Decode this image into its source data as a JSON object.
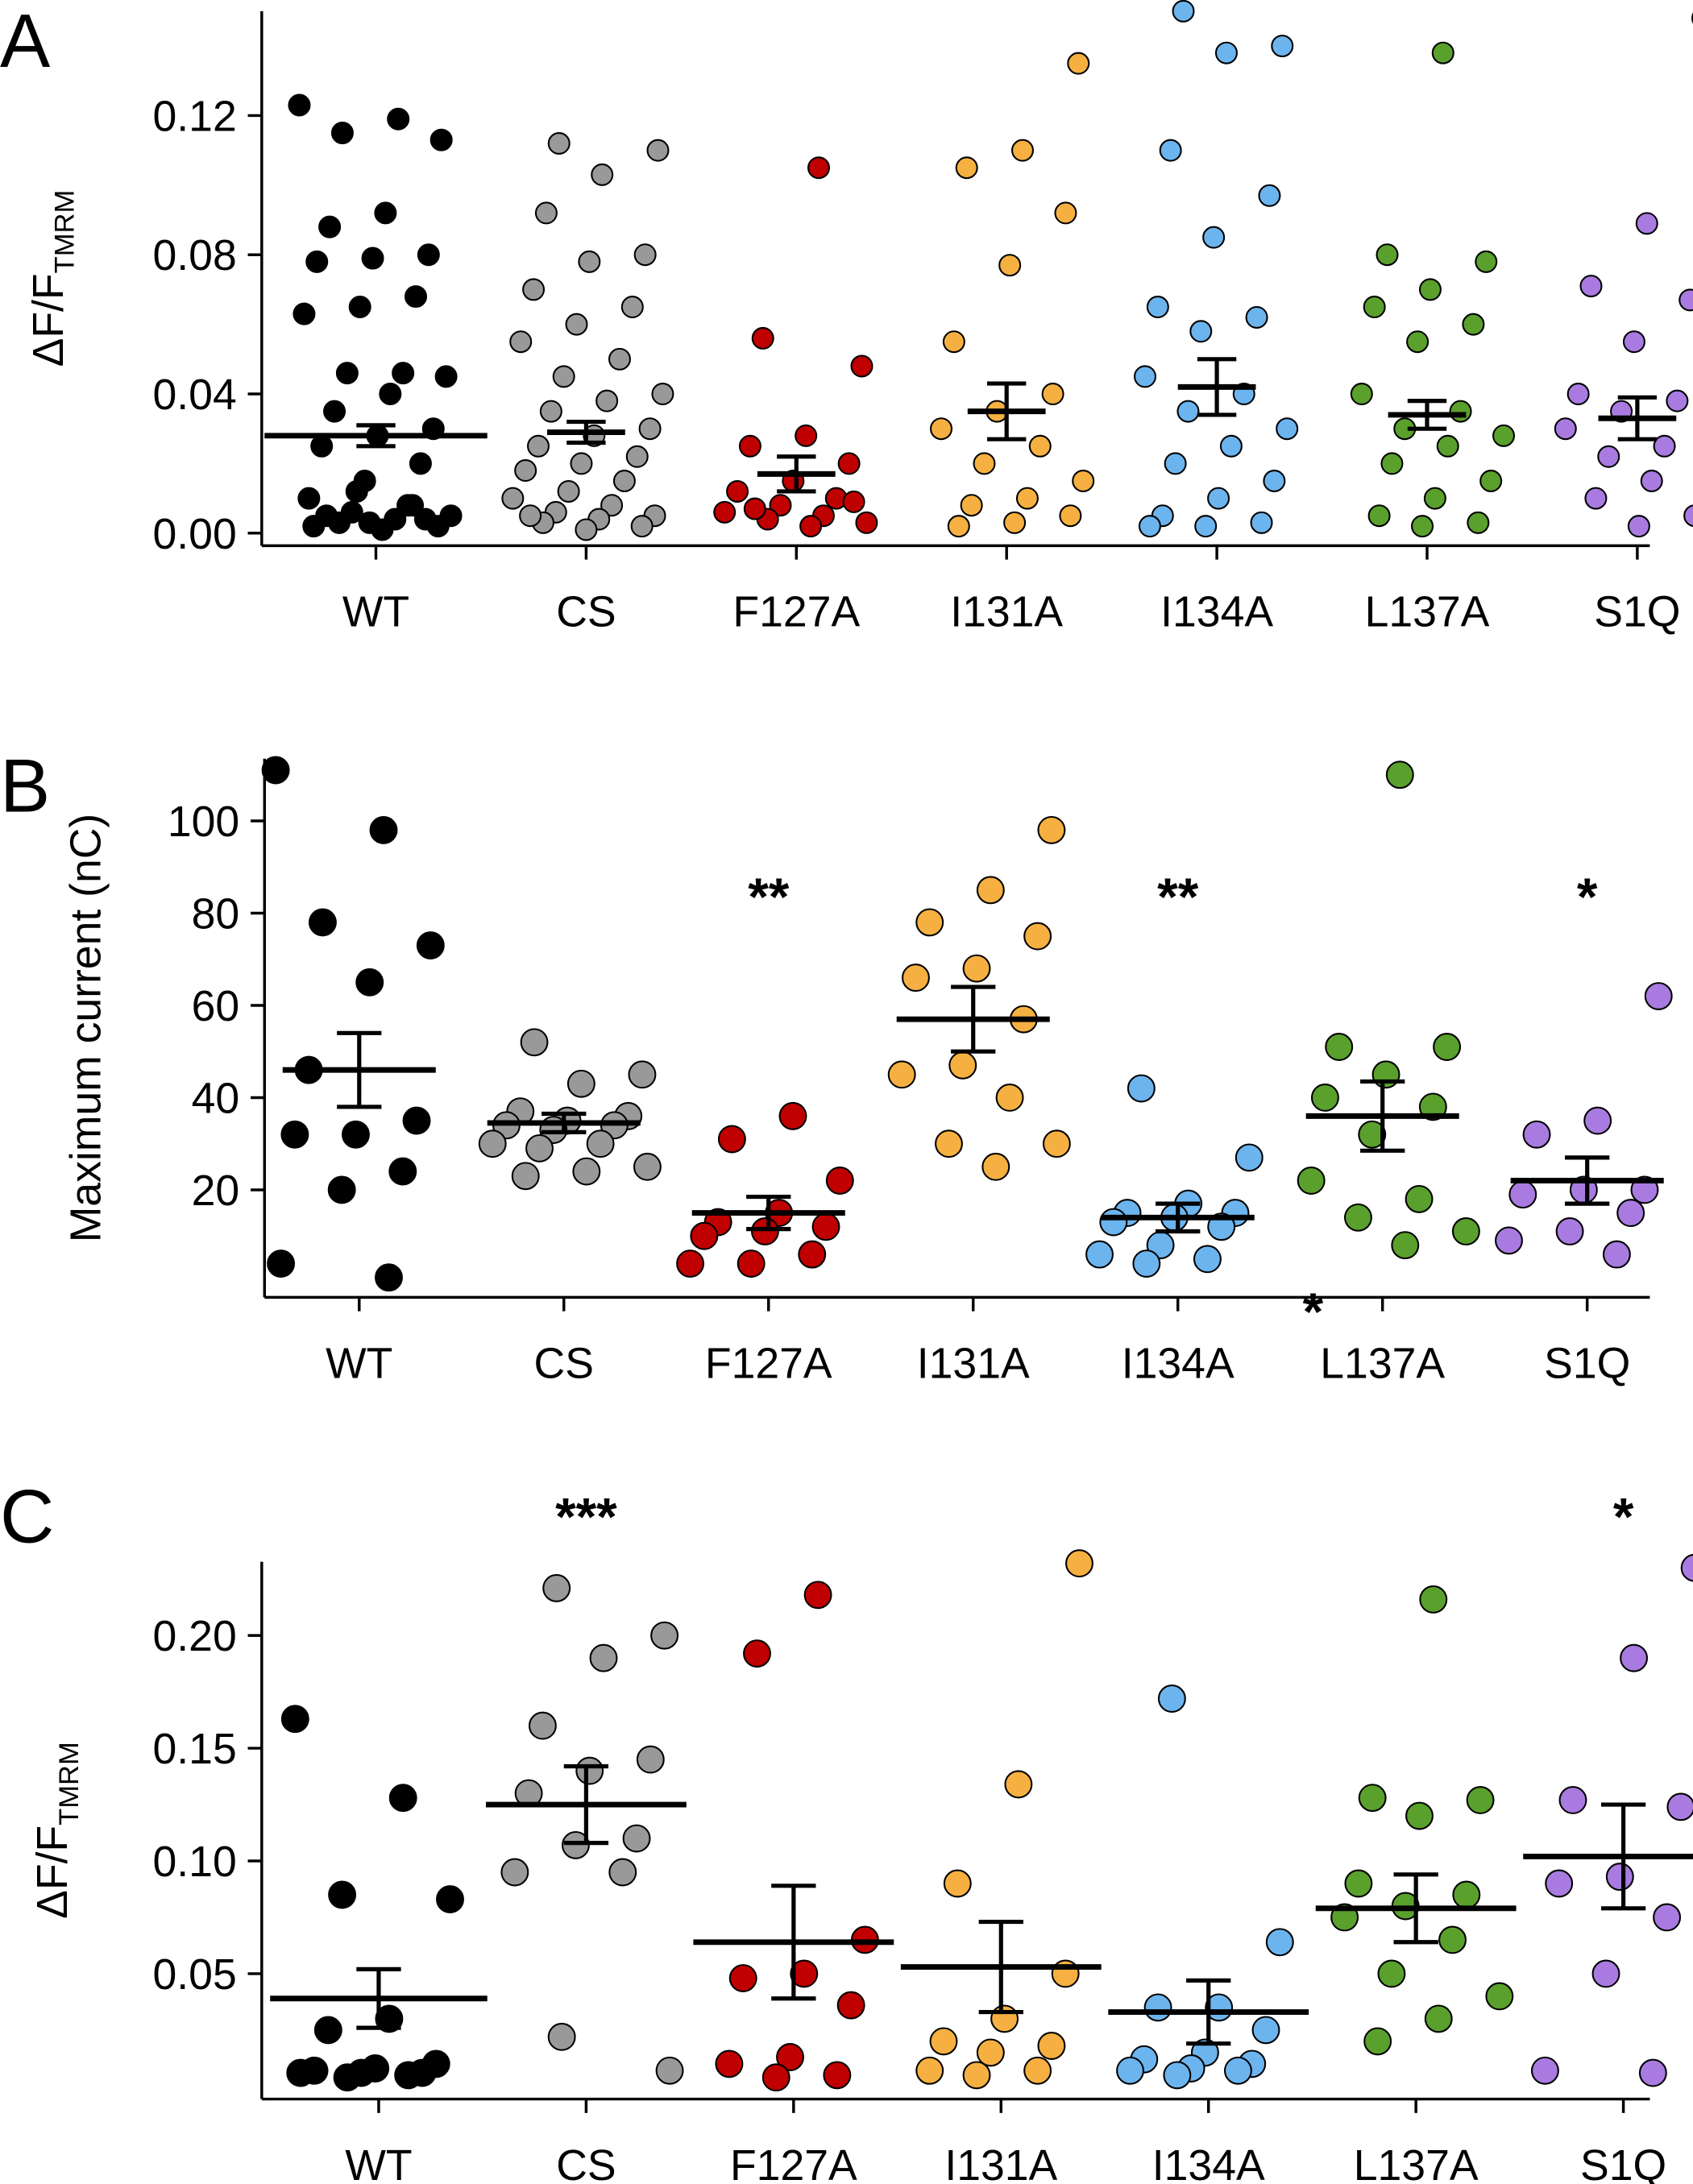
{
  "chart_data": [
    {
      "type": "strip",
      "panel": "A",
      "y_label": "ΔF/F",
      "y_label_sub": "TMRM",
      "categories": [
        "WT",
        "CS",
        "F127A",
        "I131A",
        "I134A",
        "L137A",
        "S1Q"
      ],
      "colors": [
        "#000000",
        "#999999",
        "#c00000",
        "#f5b041",
        "#6cb4ee",
        "#5aa02c",
        "#a97be0"
      ],
      "values": [
        [
          0.123,
          0.119,
          0.115,
          0.113,
          0.092,
          0.088,
          0.08,
          0.079,
          0.078,
          0.068,
          0.065,
          0.063,
          0.046,
          0.046,
          0.045,
          0.04,
          0.035,
          0.03,
          0.028,
          0.025,
          0.02,
          0.015,
          0.01,
          0.008,
          0.006,
          0.005,
          0.004,
          0.003,
          0.002,
          0.001,
          0.005,
          0.004,
          0.003,
          0.002,
          0.008,
          0.012
        ],
        [
          0.112,
          0.11,
          0.103,
          0.092,
          0.08,
          0.078,
          0.07,
          0.065,
          0.06,
          0.055,
          0.05,
          0.045,
          0.04,
          0.038,
          0.035,
          0.03,
          0.028,
          0.025,
          0.022,
          0.02,
          0.018,
          0.015,
          0.012,
          0.01,
          0.008,
          0.006,
          0.005,
          0.004,
          0.003,
          0.002,
          0.001,
          0.005
        ],
        [
          0.105,
          0.056,
          0.048,
          0.028,
          0.025,
          0.02,
          0.015,
          0.012,
          0.01,
          0.008,
          0.006,
          0.005,
          0.004,
          0.003,
          0.002,
          0.007,
          0.009
        ],
        [
          0.135,
          0.11,
          0.105,
          0.092,
          0.077,
          0.055,
          0.04,
          0.035,
          0.03,
          0.025,
          0.02,
          0.015,
          0.01,
          0.008,
          0.005,
          0.003,
          0.002
        ],
        [
          0.15,
          0.14,
          0.138,
          0.11,
          0.097,
          0.085,
          0.065,
          0.062,
          0.058,
          0.045,
          0.04,
          0.035,
          0.03,
          0.025,
          0.02,
          0.015,
          0.01,
          0.005,
          0.003,
          0.002,
          0.002
        ],
        [
          0.138,
          0.08,
          0.078,
          0.07,
          0.065,
          0.06,
          0.055,
          0.04,
          0.035,
          0.03,
          0.028,
          0.025,
          0.02,
          0.015,
          0.01,
          0.005,
          0.003,
          0.002
        ],
        [
          0.148,
          0.089,
          0.071,
          0.067,
          0.055,
          0.04,
          0.038,
          0.035,
          0.03,
          0.025,
          0.022,
          0.02,
          0.015,
          0.01,
          0.005,
          0.002
        ]
      ],
      "means": [
        0.028,
        0.029,
        0.017,
        0.035,
        0.042,
        0.034,
        0.033
      ],
      "sems": [
        0.003,
        0.003,
        0.005,
        0.008,
        0.008,
        0.004,
        0.006
      ],
      "ylim": [
        -0.0036,
        0.15
      ],
      "yticks": [
        {
          "value": 0,
          "label": "0.00"
        },
        0.04,
        0.08,
        0.12
      ],
      "annotations": []
    },
    {
      "type": "strip",
      "panel": "B",
      "y_label": "Maximum current (nC)",
      "categories": [
        "WT",
        "CS",
        "F127A",
        "I131A",
        "I134A",
        "L137A",
        "S1Q"
      ],
      "colors": [
        "#000000",
        "#999999",
        "#c00000",
        "#f5b041",
        "#6cb4ee",
        "#5aa02c",
        "#a97be0"
      ],
      "values": [
        [
          111,
          98,
          78,
          73,
          65,
          46,
          35,
          32,
          32,
          24,
          20,
          4,
          1
        ],
        [
          52,
          45,
          43,
          37,
          36,
          35,
          34,
          34,
          33,
          30,
          30,
          29,
          25,
          24,
          23
        ],
        [
          36,
          31,
          22,
          15,
          13,
          12,
          11,
          10,
          6,
          4,
          4
        ],
        [
          98,
          85,
          78,
          75,
          68,
          66,
          57,
          47,
          45,
          40,
          30,
          30,
          25
        ],
        [
          42,
          27,
          17,
          15,
          15,
          14,
          13,
          12,
          8,
          6,
          5,
          4
        ],
        [
          110,
          51,
          51,
          45,
          40,
          38,
          32,
          22,
          18,
          14,
          11,
          8
        ],
        [
          62,
          35,
          32,
          20,
          20,
          19,
          15,
          11,
          9,
          6
        ]
      ],
      "means": [
        46,
        34.5,
        15,
        57,
        14,
        36,
        22
      ],
      "sems": [
        8,
        2,
        3.5,
        7,
        3,
        7.5,
        5
      ],
      "ylim": [
        -3.3,
        113.5
      ],
      "yticks": [
        20,
        40,
        60,
        80,
        100
      ],
      "annotations": [
        {
          "text": "**",
          "x": 2,
          "y": 85
        },
        {
          "text": "**",
          "x": 4,
          "y": 85
        },
        {
          "text": "*",
          "x": 6,
          "y": 85
        },
        {
          "text": "*",
          "x": 4.66,
          "y": -5
        }
      ]
    },
    {
      "type": "strip",
      "panel": "C",
      "y_label": "ΔF/F",
      "y_label_sub": "TMRM",
      "categories": [
        "WT",
        "CS",
        "F127A",
        "I131A",
        "I134A",
        "L137A",
        "S1Q"
      ],
      "colors": [
        "#000000",
        "#999999",
        "#c00000",
        "#f5b041",
        "#6cb4ee",
        "#5aa02c",
        "#a97be0"
      ],
      "values": [
        [
          0.163,
          0.128,
          0.085,
          0.083,
          0.03,
          0.025,
          0.01,
          0.008,
          0.007,
          0.006,
          0.006,
          0.006,
          0.005,
          0.004
        ],
        [
          0.221,
          0.2,
          0.19,
          0.16,
          0.145,
          0.14,
          0.13,
          0.11,
          0.107,
          0.095,
          0.095,
          0.022,
          0.007
        ],
        [
          0.218,
          0.192,
          0.065,
          0.05,
          0.048,
          0.036,
          0.013,
          0.01,
          0.005,
          0.004
        ],
        [
          0.232,
          0.134,
          0.09,
          0.05,
          0.03,
          0.02,
          0.018,
          0.015,
          0.007,
          0.007,
          0.005
        ],
        [
          0.172,
          0.064,
          0.035,
          0.035,
          0.025,
          0.015,
          0.012,
          0.01,
          0.008,
          0.007,
          0.007,
          0.005
        ],
        [
          0.216,
          0.128,
          0.127,
          0.12,
          0.09,
          0.085,
          0.08,
          0.075,
          0.065,
          0.05,
          0.04,
          0.03,
          0.02
        ],
        [
          0.23,
          0.19,
          0.127,
          0.124,
          0.093,
          0.09,
          0.075,
          0.05,
          0.007,
          0.006
        ]
      ],
      "means": [
        0.039,
        0.125,
        0.064,
        0.053,
        0.033,
        0.079,
        0.102
      ],
      "sems": [
        0.013,
        0.017,
        0.025,
        0.02,
        0.014,
        0.015,
        0.023
      ],
      "ylim": [
        -0.0056,
        0.2327
      ],
      "yticks": [
        0.05,
        {
          "value": 0.1,
          "label": "0.10"
        },
        0.15,
        {
          "value": 0.2,
          "label": "0.20"
        }
      ],
      "annotations": [
        {
          "text": "***",
          "x": 1,
          "y": 0.2556
        },
        {
          "text": "*",
          "x": 6,
          "y": 0.2556
        }
      ]
    }
  ]
}
